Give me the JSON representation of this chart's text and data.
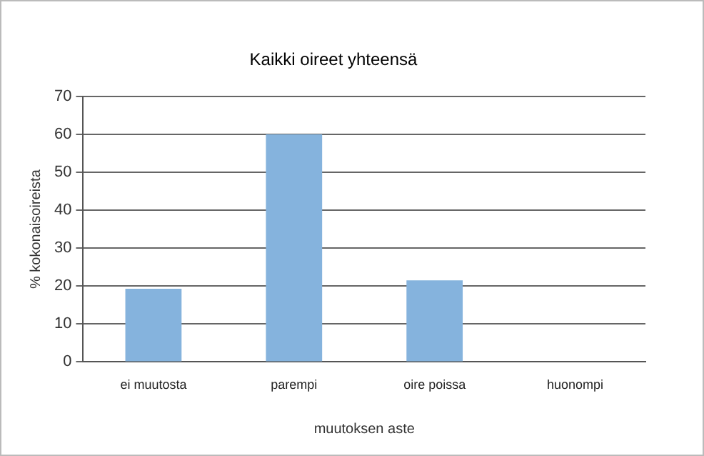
{
  "chart_data": {
    "type": "bar",
    "title": "Kaikki oireet yhteensä",
    "xlabel": "muutoksen aste",
    "ylabel": "% kokonaisoireista",
    "categories": [
      "ei muutosta",
      "parempi",
      "oire poissa",
      "huonompi"
    ],
    "values": [
      19.3,
      60,
      21.5,
      0
    ],
    "color": "#85b3dd",
    "ylim": [
      0,
      70
    ],
    "yticks": [
      0,
      10,
      20,
      30,
      40,
      50,
      60,
      70
    ],
    "grid": "y"
  }
}
